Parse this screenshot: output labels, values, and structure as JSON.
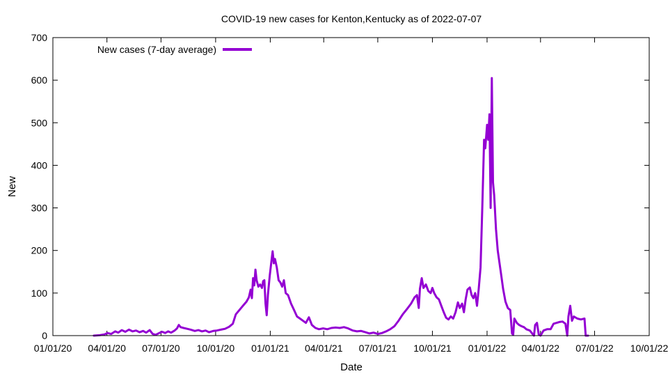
{
  "chart_data": {
    "type": "line",
    "title": "COVID-19 new cases for Kenton,Kentucky as of 2022-07-07",
    "xlabel": "Date",
    "ylabel": "New",
    "xlim": [
      "2020-01-01",
      "2022-10-01"
    ],
    "ylim": [
      0,
      700
    ],
    "grid": false,
    "legend_position": "top-left",
    "x_ticks": [
      "2020-01-01",
      "2020-04-01",
      "2020-07-01",
      "2020-10-01",
      "2021-01-01",
      "2021-04-01",
      "2021-07-01",
      "2021-10-01",
      "2022-01-01",
      "2022-04-01",
      "2022-07-01",
      "2022-10-01"
    ],
    "x_tick_labels": [
      "01/01/20",
      "04/01/20",
      "07/01/20",
      "10/01/20",
      "01/01/21",
      "04/01/21",
      "07/01/21",
      "10/01/21",
      "01/01/22",
      "04/01/22",
      "07/01/22",
      "10/01/22"
    ],
    "y_ticks": [
      0,
      100,
      200,
      300,
      400,
      500,
      600,
      700
    ],
    "y_tick_labels": [
      "0",
      "100",
      "200",
      "300",
      "400",
      "500",
      "600",
      "700"
    ],
    "series": [
      {
        "name": "New cases (7-day average)",
        "color": "#9400d3",
        "points": [
          [
            "2020-03-10",
            0
          ],
          [
            "2020-03-20",
            1
          ],
          [
            "2020-03-28",
            3
          ],
          [
            "2020-04-02",
            6
          ],
          [
            "2020-04-08",
            4
          ],
          [
            "2020-04-15",
            10
          ],
          [
            "2020-04-20",
            7
          ],
          [
            "2020-04-26",
            13
          ],
          [
            "2020-05-02",
            9
          ],
          [
            "2020-05-08",
            14
          ],
          [
            "2020-05-14",
            10
          ],
          [
            "2020-05-20",
            12
          ],
          [
            "2020-05-26",
            8
          ],
          [
            "2020-06-01",
            11
          ],
          [
            "2020-06-06",
            7
          ],
          [
            "2020-06-12",
            13
          ],
          [
            "2020-06-17",
            4
          ],
          [
            "2020-06-22",
            2
          ],
          [
            "2020-06-28",
            6
          ],
          [
            "2020-07-03",
            9
          ],
          [
            "2020-07-08",
            6
          ],
          [
            "2020-07-13",
            10
          ],
          [
            "2020-07-18",
            7
          ],
          [
            "2020-07-24",
            12
          ],
          [
            "2020-07-28",
            17
          ],
          [
            "2020-07-31",
            25
          ],
          [
            "2020-08-03",
            20
          ],
          [
            "2020-08-08",
            18
          ],
          [
            "2020-08-14",
            16
          ],
          [
            "2020-08-20",
            14
          ],
          [
            "2020-08-27",
            11
          ],
          [
            "2020-09-02",
            13
          ],
          [
            "2020-09-08",
            10
          ],
          [
            "2020-09-14",
            12
          ],
          [
            "2020-09-20",
            8
          ],
          [
            "2020-09-27",
            11
          ],
          [
            "2020-10-03",
            12
          ],
          [
            "2020-10-10",
            14
          ],
          [
            "2020-10-17",
            16
          ],
          [
            "2020-10-24",
            21
          ],
          [
            "2020-10-30",
            28
          ],
          [
            "2020-11-04",
            50
          ],
          [
            "2020-11-10",
            60
          ],
          [
            "2020-11-16",
            70
          ],
          [
            "2020-11-22",
            80
          ],
          [
            "2020-11-26",
            90
          ],
          [
            "2020-11-29",
            108
          ],
          [
            "2020-12-01",
            88
          ],
          [
            "2020-12-03",
            135
          ],
          [
            "2020-12-05",
            118
          ],
          [
            "2020-12-07",
            155
          ],
          [
            "2020-12-09",
            130
          ],
          [
            "2020-12-12",
            115
          ],
          [
            "2020-12-15",
            120
          ],
          [
            "2020-12-18",
            112
          ],
          [
            "2020-12-20",
            128
          ],
          [
            "2020-12-22",
            130
          ],
          [
            "2020-12-24",
            75
          ],
          [
            "2020-12-26",
            48
          ],
          [
            "2020-12-28",
            95
          ],
          [
            "2020-12-31",
            140
          ],
          [
            "2021-01-03",
            175
          ],
          [
            "2021-01-05",
            198
          ],
          [
            "2021-01-07",
            170
          ],
          [
            "2021-01-09",
            180
          ],
          [
            "2021-01-12",
            160
          ],
          [
            "2021-01-15",
            130
          ],
          [
            "2021-01-18",
            125
          ],
          [
            "2021-01-21",
            115
          ],
          [
            "2021-01-24",
            130
          ],
          [
            "2021-01-27",
            100
          ],
          [
            "2021-01-31",
            95
          ],
          [
            "2021-02-05",
            75
          ],
          [
            "2021-02-10",
            60
          ],
          [
            "2021-02-15",
            45
          ],
          [
            "2021-02-20",
            40
          ],
          [
            "2021-02-26",
            34
          ],
          [
            "2021-03-02",
            30
          ],
          [
            "2021-03-07",
            43
          ],
          [
            "2021-03-12",
            25
          ],
          [
            "2021-03-18",
            18
          ],
          [
            "2021-03-24",
            15
          ],
          [
            "2021-03-31",
            17
          ],
          [
            "2021-04-07",
            15
          ],
          [
            "2021-04-14",
            18
          ],
          [
            "2021-04-21",
            19
          ],
          [
            "2021-04-28",
            18
          ],
          [
            "2021-05-05",
            20
          ],
          [
            "2021-05-12",
            17
          ],
          [
            "2021-05-20",
            12
          ],
          [
            "2021-05-27",
            10
          ],
          [
            "2021-06-03",
            11
          ],
          [
            "2021-06-10",
            8
          ],
          [
            "2021-06-17",
            5
          ],
          [
            "2021-06-24",
            7
          ],
          [
            "2021-07-01",
            4
          ],
          [
            "2021-07-08",
            6
          ],
          [
            "2021-07-15",
            10
          ],
          [
            "2021-07-22",
            15
          ],
          [
            "2021-07-29",
            22
          ],
          [
            "2021-08-05",
            35
          ],
          [
            "2021-08-12",
            50
          ],
          [
            "2021-08-19",
            62
          ],
          [
            "2021-08-26",
            75
          ],
          [
            "2021-09-01",
            90
          ],
          [
            "2021-09-05",
            95
          ],
          [
            "2021-09-08",
            65
          ],
          [
            "2021-09-10",
            110
          ],
          [
            "2021-09-13",
            135
          ],
          [
            "2021-09-16",
            112
          ],
          [
            "2021-09-20",
            120
          ],
          [
            "2021-09-24",
            105
          ],
          [
            "2021-09-28",
            100
          ],
          [
            "2021-10-01",
            112
          ],
          [
            "2021-10-04",
            100
          ],
          [
            "2021-10-08",
            90
          ],
          [
            "2021-10-12",
            85
          ],
          [
            "2021-10-16",
            70
          ],
          [
            "2021-10-20",
            55
          ],
          [
            "2021-10-24",
            42
          ],
          [
            "2021-10-28",
            38
          ],
          [
            "2021-11-01",
            45
          ],
          [
            "2021-11-05",
            40
          ],
          [
            "2021-11-09",
            55
          ],
          [
            "2021-11-13",
            78
          ],
          [
            "2021-11-16",
            65
          ],
          [
            "2021-11-20",
            75
          ],
          [
            "2021-11-23",
            55
          ],
          [
            "2021-11-26",
            85
          ],
          [
            "2021-11-29",
            108
          ],
          [
            "2021-12-03",
            113
          ],
          [
            "2021-12-06",
            95
          ],
          [
            "2021-12-09",
            88
          ],
          [
            "2021-12-12",
            100
          ],
          [
            "2021-12-15",
            70
          ],
          [
            "2021-12-18",
            110
          ],
          [
            "2021-12-21",
            160
          ],
          [
            "2021-12-24",
            300
          ],
          [
            "2021-12-27",
            460
          ],
          [
            "2021-12-29",
            440
          ],
          [
            "2022-01-01",
            495
          ],
          [
            "2022-01-03",
            460
          ],
          [
            "2022-01-05",
            520
          ],
          [
            "2022-01-07",
            300
          ],
          [
            "2022-01-09",
            605
          ],
          [
            "2022-01-11",
            360
          ],
          [
            "2022-01-13",
            330
          ],
          [
            "2022-01-16",
            250
          ],
          [
            "2022-01-19",
            200
          ],
          [
            "2022-01-22",
            170
          ],
          [
            "2022-01-25",
            140
          ],
          [
            "2022-01-28",
            110
          ],
          [
            "2022-02-01",
            80
          ],
          [
            "2022-02-05",
            65
          ],
          [
            "2022-02-09",
            60
          ],
          [
            "2022-02-12",
            5
          ],
          [
            "2022-02-14",
            2
          ],
          [
            "2022-02-16",
            40
          ],
          [
            "2022-02-20",
            30
          ],
          [
            "2022-02-24",
            25
          ],
          [
            "2022-02-28",
            22
          ],
          [
            "2022-03-04",
            20
          ],
          [
            "2022-03-08",
            15
          ],
          [
            "2022-03-14",
            12
          ],
          [
            "2022-03-18",
            5
          ],
          [
            "2022-03-21",
            0
          ],
          [
            "2022-03-23",
            25
          ],
          [
            "2022-03-26",
            30
          ],
          [
            "2022-03-29",
            3
          ],
          [
            "2022-04-01",
            0
          ],
          [
            "2022-04-06",
            12
          ],
          [
            "2022-04-12",
            15
          ],
          [
            "2022-04-18",
            15
          ],
          [
            "2022-04-23",
            28
          ],
          [
            "2022-04-28",
            30
          ],
          [
            "2022-05-03",
            32
          ],
          [
            "2022-05-08",
            33
          ],
          [
            "2022-05-13",
            28
          ],
          [
            "2022-05-16",
            0
          ],
          [
            "2022-05-18",
            45
          ],
          [
            "2022-05-21",
            70
          ],
          [
            "2022-05-24",
            35
          ],
          [
            "2022-05-27",
            45
          ],
          [
            "2022-06-02",
            40
          ],
          [
            "2022-06-08",
            38
          ],
          [
            "2022-06-14",
            40
          ],
          [
            "2022-06-16",
            0
          ],
          [
            "2022-06-20",
            0
          ]
        ]
      }
    ]
  }
}
